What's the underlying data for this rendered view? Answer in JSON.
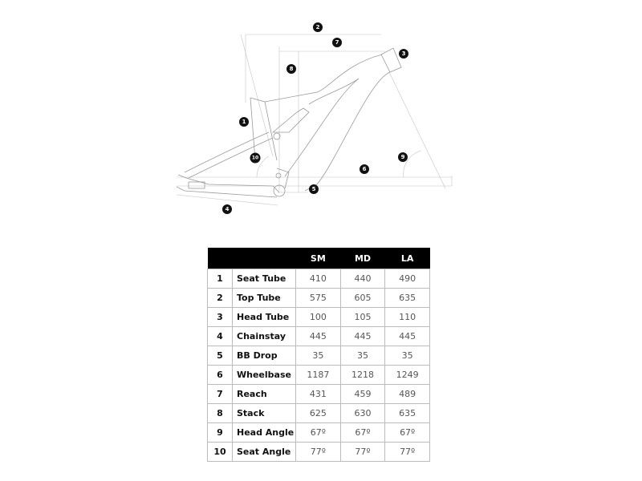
{
  "diagram": {
    "markers": [
      "1",
      "2",
      "3",
      "4",
      "5",
      "6",
      "7",
      "8",
      "9",
      "10"
    ]
  },
  "table": {
    "headers": [
      "",
      "",
      "SM",
      "MD",
      "LA"
    ],
    "rows": [
      {
        "num": "1",
        "label": "Seat Tube",
        "sm": "410",
        "md": "440",
        "la": "490"
      },
      {
        "num": "2",
        "label": "Top Tube",
        "sm": "575",
        "md": "605",
        "la": "635"
      },
      {
        "num": "3",
        "label": "Head Tube",
        "sm": "100",
        "md": "105",
        "la": "110"
      },
      {
        "num": "4",
        "label": "Chainstay",
        "sm": "445",
        "md": "445",
        "la": "445"
      },
      {
        "num": "5",
        "label": "BB Drop",
        "sm": "35",
        "md": "35",
        "la": "35"
      },
      {
        "num": "6",
        "label": "Wheelbase",
        "sm": "1187",
        "md": "1218",
        "la": "1249"
      },
      {
        "num": "7",
        "label": "Reach",
        "sm": "431",
        "md": "459",
        "la": "489"
      },
      {
        "num": "8",
        "label": "Stack",
        "sm": "625",
        "md": "630",
        "la": "635"
      },
      {
        "num": "9",
        "label": "Head Angle",
        "sm": "67º",
        "md": "67º",
        "la": "67º"
      },
      {
        "num": "10",
        "label": "Seat Angle",
        "sm": "77º",
        "md": "77º",
        "la": "77º"
      }
    ]
  }
}
